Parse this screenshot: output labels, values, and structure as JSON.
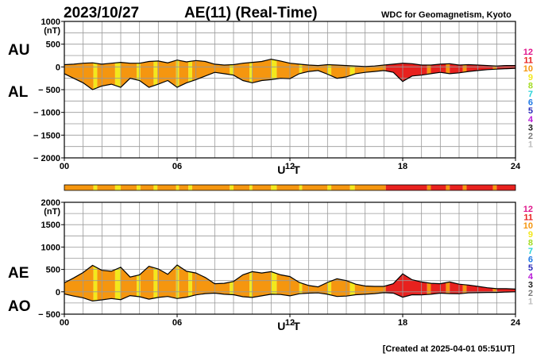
{
  "header": {
    "date": "2023/10/27",
    "title": "AE(11) (Real-Time)",
    "source": "WDC for Geomagnetism, Kyoto",
    "created": "[Created at 2025-04-01 05:51UT]"
  },
  "legend_levels": [
    {
      "label": "12",
      "color": "#e0168c"
    },
    {
      "label": "11",
      "color": "#e8211e"
    },
    {
      "label": "10",
      "color": "#f5960f"
    },
    {
      "label": "9",
      "color": "#f3e81c"
    },
    {
      "label": "8",
      "color": "#a4dc25"
    },
    {
      "label": "7",
      "color": "#27d2d8"
    },
    {
      "label": "6",
      "color": "#1f7ae6"
    },
    {
      "label": "5",
      "color": "#2a2ab8"
    },
    {
      "label": "4",
      "color": "#b81ad8"
    },
    {
      "label": "3",
      "color": "#222222"
    },
    {
      "label": "2",
      "color": "#7a7a7a"
    },
    {
      "label": "1",
      "color": "#bdbdbd"
    }
  ],
  "chart_data": [
    {
      "type": "area",
      "panel": "AU/AL",
      "unit": "(nT)",
      "upper_label": "AU",
      "lower_label": "AL",
      "xlabel": "U T",
      "xlim": [
        0,
        24
      ],
      "xticks": [
        0,
        6,
        12,
        18,
        24
      ],
      "xtick_labels": [
        "00",
        "06",
        "12",
        "18",
        "24"
      ],
      "ylim": [
        -2000,
        1000
      ],
      "yticks": [
        1000,
        500,
        0,
        -500,
        -1000,
        -1500,
        -2000
      ],
      "ytick_labels": [
        "1000",
        "500",
        "0",
        "− 500",
        "− 1000",
        "− 1500",
        "− 2000"
      ],
      "series": [
        {
          "name": "AU",
          "x": [
            0,
            0.5,
            1,
            1.5,
            2,
            2.5,
            3,
            3.5,
            4,
            4.5,
            5,
            5.5,
            6,
            6.5,
            7,
            7.5,
            8,
            8.5,
            9,
            9.5,
            10,
            10.5,
            11,
            11.5,
            12,
            12.5,
            13,
            13.5,
            14,
            14.5,
            15,
            15.5,
            16,
            16.5,
            17,
            17.5,
            18,
            18.5,
            19,
            19.5,
            20,
            20.5,
            21,
            21.5,
            22,
            22.5,
            23,
            23.5,
            24
          ],
          "values": [
            50,
            60,
            80,
            90,
            60,
            80,
            100,
            80,
            80,
            120,
            130,
            90,
            150,
            110,
            140,
            120,
            60,
            40,
            50,
            80,
            100,
            120,
            170,
            130,
            80,
            60,
            40,
            30,
            50,
            40,
            30,
            20,
            10,
            20,
            40,
            60,
            80,
            70,
            40,
            40,
            60,
            70,
            40,
            50,
            40,
            30,
            20,
            30,
            30
          ]
        },
        {
          "name": "AL",
          "x": [
            0,
            0.5,
            1,
            1.5,
            2,
            2.5,
            3,
            3.5,
            4,
            4.5,
            5,
            5.5,
            6,
            6.5,
            7,
            7.5,
            8,
            8.5,
            9,
            9.5,
            10,
            10.5,
            11,
            11.5,
            12,
            12.5,
            13,
            13.5,
            14,
            14.5,
            15,
            15.5,
            16,
            16.5,
            17,
            17.5,
            18,
            18.5,
            19,
            19.5,
            20,
            20.5,
            21,
            21.5,
            22,
            22.5,
            23,
            23.5,
            24
          ],
          "values": [
            -150,
            -250,
            -350,
            -500,
            -420,
            -380,
            -450,
            -250,
            -300,
            -450,
            -380,
            -300,
            -450,
            -350,
            -280,
            -200,
            -120,
            -150,
            -180,
            -300,
            -350,
            -300,
            -280,
            -250,
            -260,
            -150,
            -100,
            -80,
            -160,
            -250,
            -220,
            -150,
            -120,
            -100,
            -80,
            -120,
            -320,
            -200,
            -180,
            -150,
            -120,
            -150,
            -130,
            -100,
            -80,
            -60,
            -50,
            -40,
            -30
          ]
        }
      ]
    },
    {
      "type": "area",
      "panel": "AE/AO",
      "unit": "(nT)",
      "upper_label": "AE",
      "lower_label": "AO",
      "xlabel": "U T",
      "xlim": [
        0,
        24
      ],
      "xticks": [
        0,
        6,
        12,
        18,
        24
      ],
      "xtick_labels": [
        "00",
        "06",
        "12",
        "18",
        "24"
      ],
      "ylim": [
        -500,
        2000
      ],
      "yticks": [
        2000,
        1500,
        1000,
        500,
        0,
        -500
      ],
      "ytick_labels": [
        "2000",
        "1500",
        "1000",
        "500",
        "0",
        "− 500"
      ],
      "series": [
        {
          "name": "AE",
          "x": [
            0,
            0.5,
            1,
            1.5,
            2,
            2.5,
            3,
            3.5,
            4,
            4.5,
            5,
            5.5,
            6,
            6.5,
            7,
            7.5,
            8,
            8.5,
            9,
            9.5,
            10,
            10.5,
            11,
            11.5,
            12,
            12.5,
            13,
            13.5,
            14,
            14.5,
            15,
            15.5,
            16,
            16.5,
            17,
            17.5,
            18,
            18.5,
            19,
            19.5,
            20,
            20.5,
            21,
            21.5,
            22,
            22.5,
            23,
            23.5,
            24
          ],
          "values": [
            200,
            310,
            430,
            590,
            480,
            460,
            550,
            330,
            380,
            570,
            510,
            390,
            600,
            460,
            420,
            320,
            180,
            190,
            230,
            380,
            450,
            420,
            450,
            380,
            340,
            210,
            140,
            110,
            210,
            290,
            250,
            170,
            130,
            120,
            120,
            180,
            400,
            270,
            220,
            190,
            180,
            220,
            170,
            150,
            120,
            90,
            70,
            70,
            60
          ]
        },
        {
          "name": "AO",
          "x": [
            0,
            0.5,
            1,
            1.5,
            2,
            2.5,
            3,
            3.5,
            4,
            4.5,
            5,
            5.5,
            6,
            6.5,
            7,
            7.5,
            8,
            8.5,
            9,
            9.5,
            10,
            10.5,
            11,
            11.5,
            12,
            12.5,
            13,
            13.5,
            14,
            14.5,
            15,
            15.5,
            16,
            16.5,
            17,
            17.5,
            18,
            18.5,
            19,
            19.5,
            20,
            20.5,
            21,
            21.5,
            22,
            22.5,
            23,
            23.5,
            24
          ],
          "values": [
            -50,
            -95,
            -135,
            -205,
            -180,
            -150,
            -175,
            -85,
            -110,
            -165,
            -125,
            -105,
            -150,
            -120,
            -70,
            -40,
            -30,
            -55,
            -65,
            -110,
            -125,
            -90,
            -55,
            -60,
            -90,
            -45,
            -30,
            -25,
            -55,
            -105,
            -95,
            -65,
            -55,
            -40,
            -20,
            -30,
            -120,
            -65,
            -70,
            -55,
            -30,
            -40,
            -45,
            -25,
            -20,
            -15,
            -15,
            -5,
            0
          ]
        }
      ]
    }
  ],
  "activity_bands": {
    "segments": [
      {
        "from": 0.0,
        "to": 1.55,
        "level": 10
      },
      {
        "from": 1.55,
        "to": 1.75,
        "level": 9
      },
      {
        "from": 1.75,
        "to": 2.7,
        "level": 10
      },
      {
        "from": 2.7,
        "to": 3.0,
        "level": 9
      },
      {
        "from": 3.0,
        "to": 3.85,
        "level": 10
      },
      {
        "from": 3.85,
        "to": 4.05,
        "level": 9
      },
      {
        "from": 4.05,
        "to": 4.75,
        "level": 10
      },
      {
        "from": 4.75,
        "to": 4.95,
        "level": 9
      },
      {
        "from": 4.95,
        "to": 5.95,
        "level": 10
      },
      {
        "from": 5.95,
        "to": 6.1,
        "level": 9
      },
      {
        "from": 6.1,
        "to": 6.6,
        "level": 10
      },
      {
        "from": 6.6,
        "to": 6.8,
        "level": 9
      },
      {
        "from": 6.8,
        "to": 8.8,
        "level": 10
      },
      {
        "from": 8.8,
        "to": 9.0,
        "level": 9
      },
      {
        "from": 9.0,
        "to": 9.85,
        "level": 10
      },
      {
        "from": 9.85,
        "to": 10.0,
        "level": 9
      },
      {
        "from": 10.0,
        "to": 11.0,
        "level": 10
      },
      {
        "from": 11.0,
        "to": 11.3,
        "level": 9
      },
      {
        "from": 11.3,
        "to": 12.5,
        "level": 10
      },
      {
        "from": 12.5,
        "to": 12.65,
        "level": 9
      },
      {
        "from": 12.65,
        "to": 14.0,
        "level": 10
      },
      {
        "from": 14.0,
        "to": 14.2,
        "level": 9
      },
      {
        "from": 14.2,
        "to": 15.2,
        "level": 10
      },
      {
        "from": 15.2,
        "to": 15.45,
        "level": 9
      },
      {
        "from": 15.45,
        "to": 17.1,
        "level": 10
      },
      {
        "from": 17.1,
        "to": 19.3,
        "level": 11
      },
      {
        "from": 19.3,
        "to": 19.5,
        "level": 10
      },
      {
        "from": 19.5,
        "to": 20.3,
        "level": 11
      },
      {
        "from": 20.3,
        "to": 20.5,
        "level": 10
      },
      {
        "from": 20.5,
        "to": 21.2,
        "level": 11
      },
      {
        "from": 21.2,
        "to": 21.4,
        "level": 10
      },
      {
        "from": 21.4,
        "to": 22.8,
        "level": 11
      },
      {
        "from": 22.8,
        "to": 23.0,
        "level": 10
      },
      {
        "from": 23.0,
        "to": 24.0,
        "level": 11
      }
    ]
  }
}
